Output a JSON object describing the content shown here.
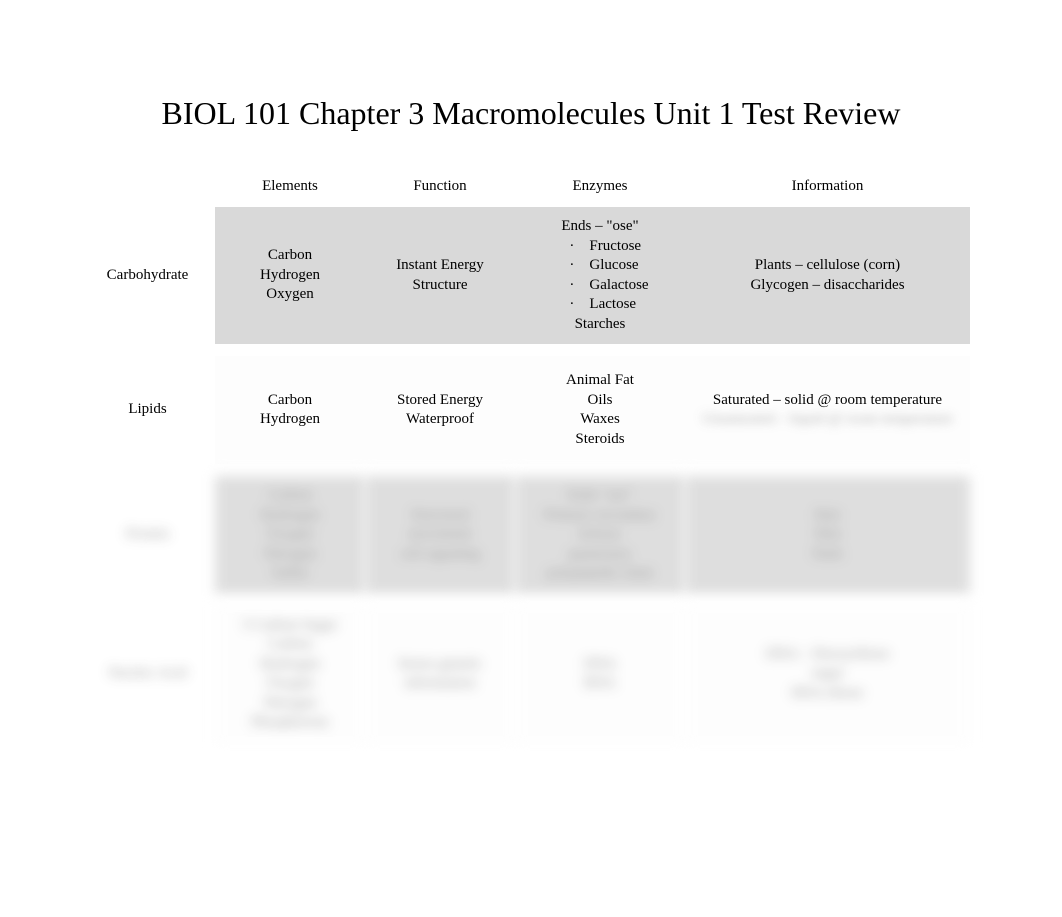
{
  "title": "BIOL 101 Chapter 3 Macromolecules Unit 1 Test Review",
  "headers": {
    "blank": "",
    "elements": "Elements",
    "function": "Function",
    "enzymes": "Enzymes",
    "information": "Information"
  },
  "rows": {
    "carb": {
      "label": "Carbohydrate",
      "elements_1": "Carbon",
      "elements_2": "Hydrogen",
      "elements_3": "Oxygen",
      "function_1": "Instant Energy",
      "function_2": "Structure",
      "enzymes_top": "Ends – \"ose\"",
      "enzymes_b1": "Fructose",
      "enzymes_b2": "Glucose",
      "enzymes_b3": "Galactose",
      "enzymes_b4": "Lactose",
      "enzymes_bottom": "Starches",
      "info_1": "Plants – cellulose (corn)",
      "info_2": "Glycogen – disaccharides"
    },
    "lipids": {
      "label": "Lipids",
      "elements_1": "Carbon",
      "elements_2": "Hydrogen",
      "function_1": "Stored Energy",
      "function_2": "Waterproof",
      "enzymes_1": "Animal Fat",
      "enzymes_2": "Oils",
      "enzymes_3": "Waxes",
      "enzymes_4": "Steroids",
      "info_1": "Saturated – solid @ room temperature",
      "info_2": "Unsaturated – liquid @ room temperature"
    },
    "protein": {
      "label": "Protein",
      "elements_1": "Carbon",
      "elements_2": "Hydrogen",
      "elements_3": "Oxygen",
      "elements_4": "Nitrogen",
      "elements_5": "Sulfur",
      "function_1": "Structural",
      "function_2": "movement",
      "function_3": "cell signaling",
      "enzymes_1": "Ends \"ase\"",
      "enzymes_2": "Primary secondary tertiary",
      "enzymes_3": "quaternary",
      "enzymes_4": "polypeptide chain",
      "info_1": "Hair",
      "info_2": "Skin",
      "info_3": "Nails"
    },
    "nucleic": {
      "label": "Nucleic Acid",
      "elements_1": "5 Carbon Sugar",
      "elements_2": "Carbon",
      "elements_3": "Hydrogen",
      "elements_4": "Oxygen",
      "elements_5": "Nitrogen",
      "elements_6": "Phosphorous",
      "function_1": "Stores genetic",
      "function_2": "information",
      "enzymes_1": "DNA",
      "enzymes_2": "RNA",
      "info_1": "DNA – Deoxyribose",
      "info_2": "sugar",
      "info_3": "RNA ribose"
    }
  },
  "colors": {
    "shade": "#d9d9d9",
    "plain": "#fdfdfd",
    "text": "#000000",
    "bg": "#ffffff"
  }
}
